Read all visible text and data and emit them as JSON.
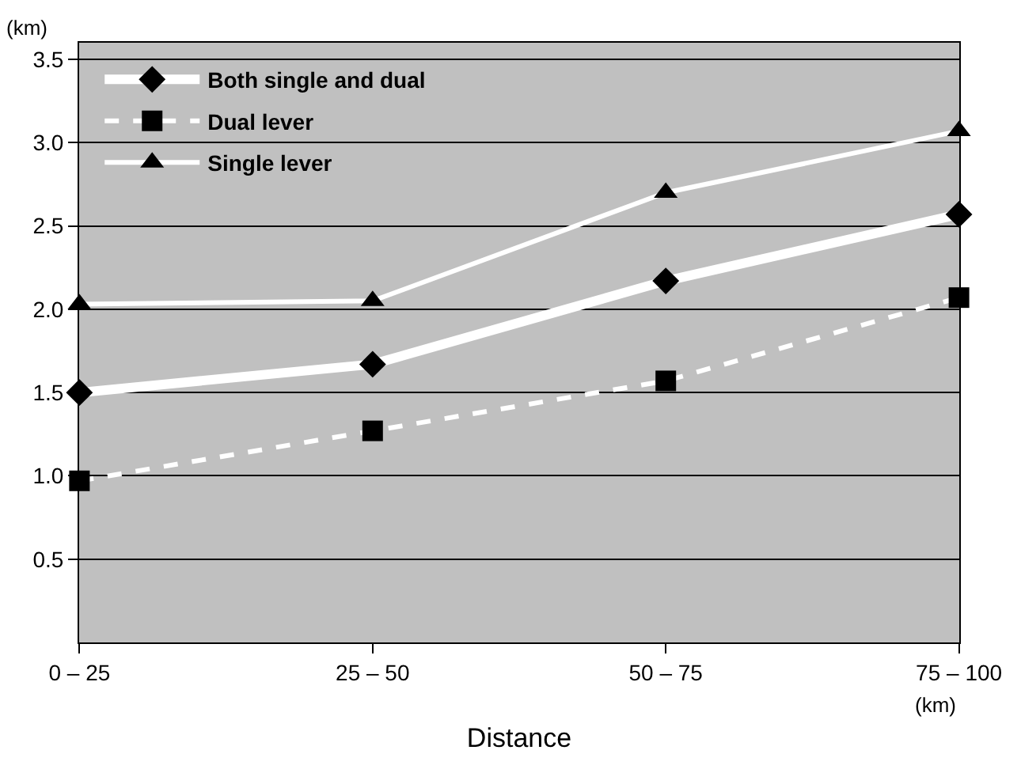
{
  "chart_data": {
    "type": "line",
    "xlabel": "Distance",
    "ylabel": "(km)",
    "categories": [
      "0 – 25",
      "25 – 50",
      "50 – 75",
      "75 – 100"
    ],
    "series": [
      {
        "name": "Both single and dual",
        "color": "#ffffff",
        "marker": "diamond",
        "line_style": "solid",
        "values": [
          1.5,
          1.67,
          2.17,
          2.57
        ]
      },
      {
        "name": "Dual lever",
        "color": "#ffffff",
        "marker": "square",
        "line_style": "dashed",
        "values": [
          0.97,
          1.27,
          1.57,
          2.07
        ]
      },
      {
        "name": "Single lever",
        "color": "#ffffff",
        "marker": "triangle",
        "line_style": "solid",
        "values": [
          2.03,
          2.05,
          2.7,
          3.07
        ]
      }
    ],
    "ylim": [
      0,
      3.6
    ],
    "yticks": [
      0.5,
      {
        "value": 1,
        "label": "1.0"
      },
      1.5,
      {
        "value": 2,
        "label": "2.0"
      },
      2.5,
      {
        "value": 3,
        "label": "3.0"
      },
      3.5
    ],
    "grid": "y",
    "legend": "top left",
    "annotations": [
      "(km)"
    ]
  }
}
